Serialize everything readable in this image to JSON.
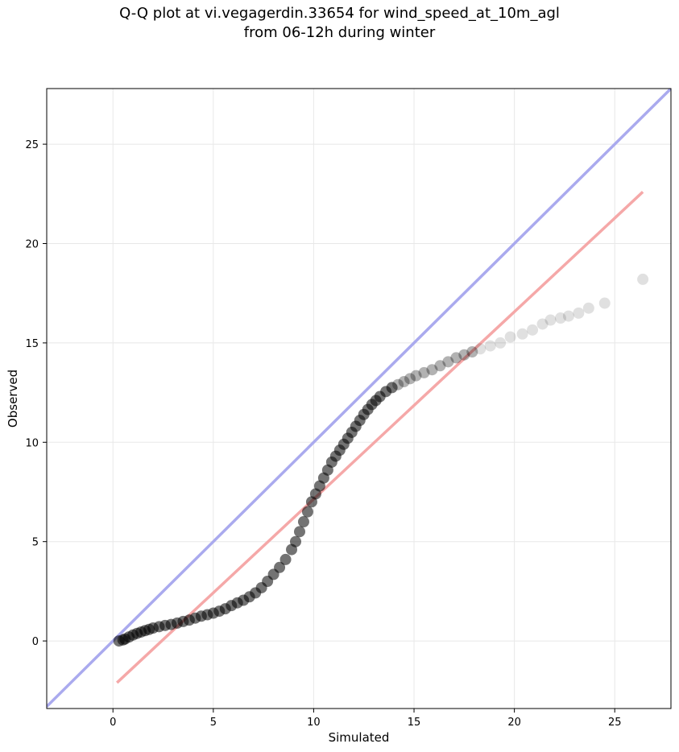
{
  "chart_data": {
    "type": "scatter",
    "title": "Q-Q plot at vi.vegagerdin.33654 for wind_speed_at_10m_agl",
    "subtitle": "from 06-12h during winter",
    "xlabel": "Simulated",
    "ylabel": "Observed",
    "xlim": [
      -3.3,
      27.8
    ],
    "ylim": [
      -3.4,
      27.8
    ],
    "xticks": [
      0,
      5,
      10,
      15,
      20,
      25
    ],
    "yticks": [
      0,
      5,
      10,
      15,
      20,
      25
    ],
    "grid": true,
    "colors": {
      "points": "#000000",
      "identity_line": "#aaaaee",
      "fit_line": "#f5a8a8",
      "grid": "#e8e8e8"
    },
    "identity_line": {
      "from": [
        -3.3,
        -3.3
      ],
      "to": [
        27.8,
        27.8
      ]
    },
    "fit_line": {
      "from": [
        0.2,
        -2.1
      ],
      "to": [
        26.4,
        22.6
      ]
    },
    "series": [
      {
        "points": [
          [
            0.3,
            0.0
          ],
          [
            0.5,
            0.05
          ],
          [
            0.6,
            0.1
          ],
          [
            0.8,
            0.2
          ],
          [
            1.0,
            0.3
          ],
          [
            1.2,
            0.38
          ],
          [
            1.4,
            0.45
          ],
          [
            1.6,
            0.52
          ],
          [
            1.8,
            0.58
          ],
          [
            2.0,
            0.65
          ],
          [
            2.3,
            0.72
          ],
          [
            2.6,
            0.78
          ],
          [
            2.9,
            0.83
          ],
          [
            3.2,
            0.9
          ],
          [
            3.5,
            0.98
          ],
          [
            3.8,
            1.05
          ],
          [
            4.1,
            1.15
          ],
          [
            4.4,
            1.25
          ],
          [
            4.7,
            1.32
          ],
          [
            5.0,
            1.4
          ],
          [
            5.3,
            1.5
          ],
          [
            5.6,
            1.62
          ],
          [
            5.9,
            1.78
          ],
          [
            6.2,
            1.92
          ],
          [
            6.5,
            2.05
          ],
          [
            6.8,
            2.22
          ],
          [
            7.1,
            2.42
          ],
          [
            7.4,
            2.68
          ],
          [
            7.7,
            3.0
          ],
          [
            8.0,
            3.35
          ],
          [
            8.3,
            3.7
          ],
          [
            8.6,
            4.1
          ],
          [
            8.9,
            4.6
          ],
          [
            9.1,
            5.0
          ],
          [
            9.3,
            5.5
          ],
          [
            9.5,
            6.0
          ],
          [
            9.7,
            6.5
          ],
          [
            9.9,
            7.0
          ],
          [
            10.1,
            7.4
          ],
          [
            10.3,
            7.8
          ],
          [
            10.5,
            8.2
          ],
          [
            10.7,
            8.6
          ],
          [
            10.9,
            9.0
          ],
          [
            11.1,
            9.3
          ],
          [
            11.3,
            9.6
          ],
          [
            11.5,
            9.9
          ],
          [
            11.7,
            10.2
          ],
          [
            11.9,
            10.5
          ],
          [
            12.1,
            10.8
          ],
          [
            12.3,
            11.1
          ],
          [
            12.5,
            11.4
          ],
          [
            12.7,
            11.65
          ],
          [
            12.9,
            11.9
          ],
          [
            13.1,
            12.1
          ],
          [
            13.3,
            12.3
          ],
          [
            13.6,
            12.55
          ],
          [
            13.9,
            12.75
          ],
          [
            14.2,
            12.9
          ],
          [
            14.5,
            13.05
          ],
          [
            14.8,
            13.2
          ],
          [
            15.1,
            13.35
          ],
          [
            15.5,
            13.5
          ],
          [
            15.9,
            13.65
          ],
          [
            16.3,
            13.85
          ],
          [
            16.7,
            14.05
          ],
          [
            17.1,
            14.25
          ],
          [
            17.5,
            14.4
          ],
          [
            17.9,
            14.55
          ],
          [
            18.3,
            14.7
          ],
          [
            18.8,
            14.85
          ],
          [
            19.3,
            15.0
          ],
          [
            19.8,
            15.3
          ],
          [
            20.4,
            15.45
          ],
          [
            20.9,
            15.65
          ],
          [
            21.4,
            15.95
          ],
          [
            21.8,
            16.15
          ],
          [
            22.3,
            16.25
          ],
          [
            22.7,
            16.35
          ],
          [
            23.2,
            16.5
          ],
          [
            23.7,
            16.75
          ],
          [
            24.5,
            17.0
          ],
          [
            26.4,
            18.2
          ]
        ]
      }
    ]
  }
}
